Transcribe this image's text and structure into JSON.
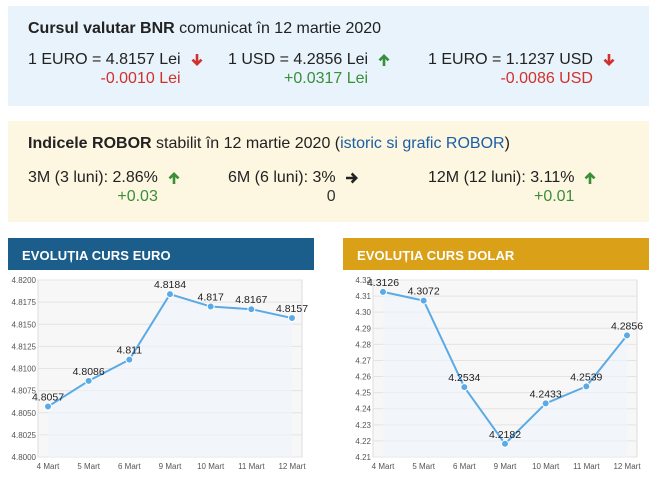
{
  "bnr": {
    "title_bold": "Cursul valutar BNR",
    "title_rest": " comunicat în 12 martie 2020",
    "rates": [
      {
        "label": "1 EURO = 4.8157 Lei",
        "change": "-0.0010 Lei",
        "direction": "down",
        "icon": "arrow-down-icon"
      },
      {
        "label": "1 USD = 4.2856 Lei",
        "change": "+0.0317 Lei",
        "direction": "up",
        "icon": "arrow-up-icon"
      },
      {
        "label": "1 EURO = 1.1237 USD",
        "change": "-0.0086 USD",
        "direction": "down",
        "icon": "arrow-down-icon"
      }
    ]
  },
  "robor": {
    "title_bold": "Indicele ROBOR",
    "title_rest": " stabilit în 12 martie 2020 (",
    "link": "istoric si grafic ROBOR",
    "title_end": ")",
    "rates": [
      {
        "label": "3M (3 luni): 2.86%",
        "change": "+0.03",
        "direction": "up",
        "icon": "arrow-up-icon"
      },
      {
        "label": "6M (6 luni): 3%",
        "change": "0",
        "direction": "neutral",
        "icon": "arrow-right-icon"
      },
      {
        "label": "12M (12 luni): 3.11%",
        "change": "+0.01",
        "direction": "up",
        "icon": "arrow-up-icon"
      }
    ]
  },
  "colors": {
    "down": "#d0312d",
    "up": "#3a8e3a",
    "euro_header": "#1b5e8c",
    "usd_header": "#d9a018",
    "line": "#5aaae6"
  },
  "chart_data": [
    {
      "type": "line",
      "title": "EVOLUȚIA CURS EURO",
      "categories": [
        "4 Mart",
        "5 Mart",
        "6 Mart",
        "9 Mart",
        "10 Mart",
        "11 Mart",
        "12 Mart"
      ],
      "values": [
        4.8057,
        4.8086,
        4.811,
        4.8184,
        4.817,
        4.8167,
        4.8157
      ],
      "value_labels": [
        "4.8057",
        "4.8086",
        "4.811",
        "4.8184",
        "4.817",
        "4.8167",
        "4.8157"
      ],
      "ylim": [
        4.8,
        4.82
      ],
      "yticks": [
        "4.8000",
        "4.8025",
        "4.8050",
        "4.8075",
        "4.8100",
        "4.8125",
        "4.8150",
        "4.8175",
        "4.8200"
      ],
      "grid": true
    },
    {
      "type": "line",
      "title": "EVOLUȚIA CURS DOLAR",
      "categories": [
        "4 Mart",
        "5 Mart",
        "6 Mart",
        "9 Mart",
        "10 Mart",
        "11 Mart",
        "12 Mart"
      ],
      "values": [
        4.3126,
        4.3072,
        4.2534,
        4.2182,
        4.2433,
        4.2539,
        4.2856
      ],
      "value_labels": [
        "4.3126",
        "4.3072",
        "4.2534",
        "4.2182",
        "4.2433",
        "4.2539",
        "4.2856"
      ],
      "ylim": [
        4.21,
        4.32
      ],
      "yticks": [
        "4.21",
        "4.22",
        "4.23",
        "4.24",
        "4.25",
        "4.26",
        "4.27",
        "4.28",
        "4.29",
        "4.30",
        "4.31",
        "4.32"
      ],
      "grid": true
    }
  ]
}
